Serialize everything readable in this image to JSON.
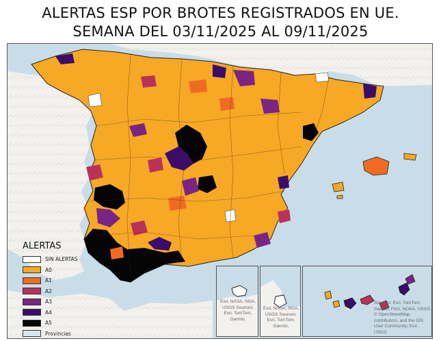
{
  "title": {
    "line1": "ALERTAS ESP POR BROTES REGISTRADOS EN UE.",
    "line2": "SEMANA DEL 03/11/2025 AL 09/11/2025"
  },
  "legend": {
    "title": "ALERTAS",
    "items": [
      {
        "label": "SIN ALERTAS",
        "color": "#ffffff"
      },
      {
        "label": "A0",
        "color": "#f7a825"
      },
      {
        "label": "A1",
        "color": "#ef6b22"
      },
      {
        "label": "A2",
        "color": "#b8325a"
      },
      {
        "label": "A3",
        "color": "#7a2584"
      },
      {
        "label": "A4",
        "color": "#3b0c6b"
      },
      {
        "label": "A5",
        "color": "#050505"
      },
      {
        "label": "Provincias",
        "color": "#d7e8ef"
      }
    ]
  },
  "insets": {
    "ceuta_attribution": "Esri, NASA, NGA, USGS Sources: Esri, TomTom, Garmin,",
    "melilla_attribution": "Esri, NASA, NGA, USGS Sources: Esri, TomTom, Garmin,",
    "canarias_attribution": "Sources: Esri, TomTom, Garmin, FAO, NOAA, USGS, © OpenStreetMap contributors, and the GIS User Community; Esri, USGS"
  },
  "colors": {
    "sea": "#c9dde8",
    "land_outside": "#f2f0ec",
    "border": "#2a2a2a"
  }
}
